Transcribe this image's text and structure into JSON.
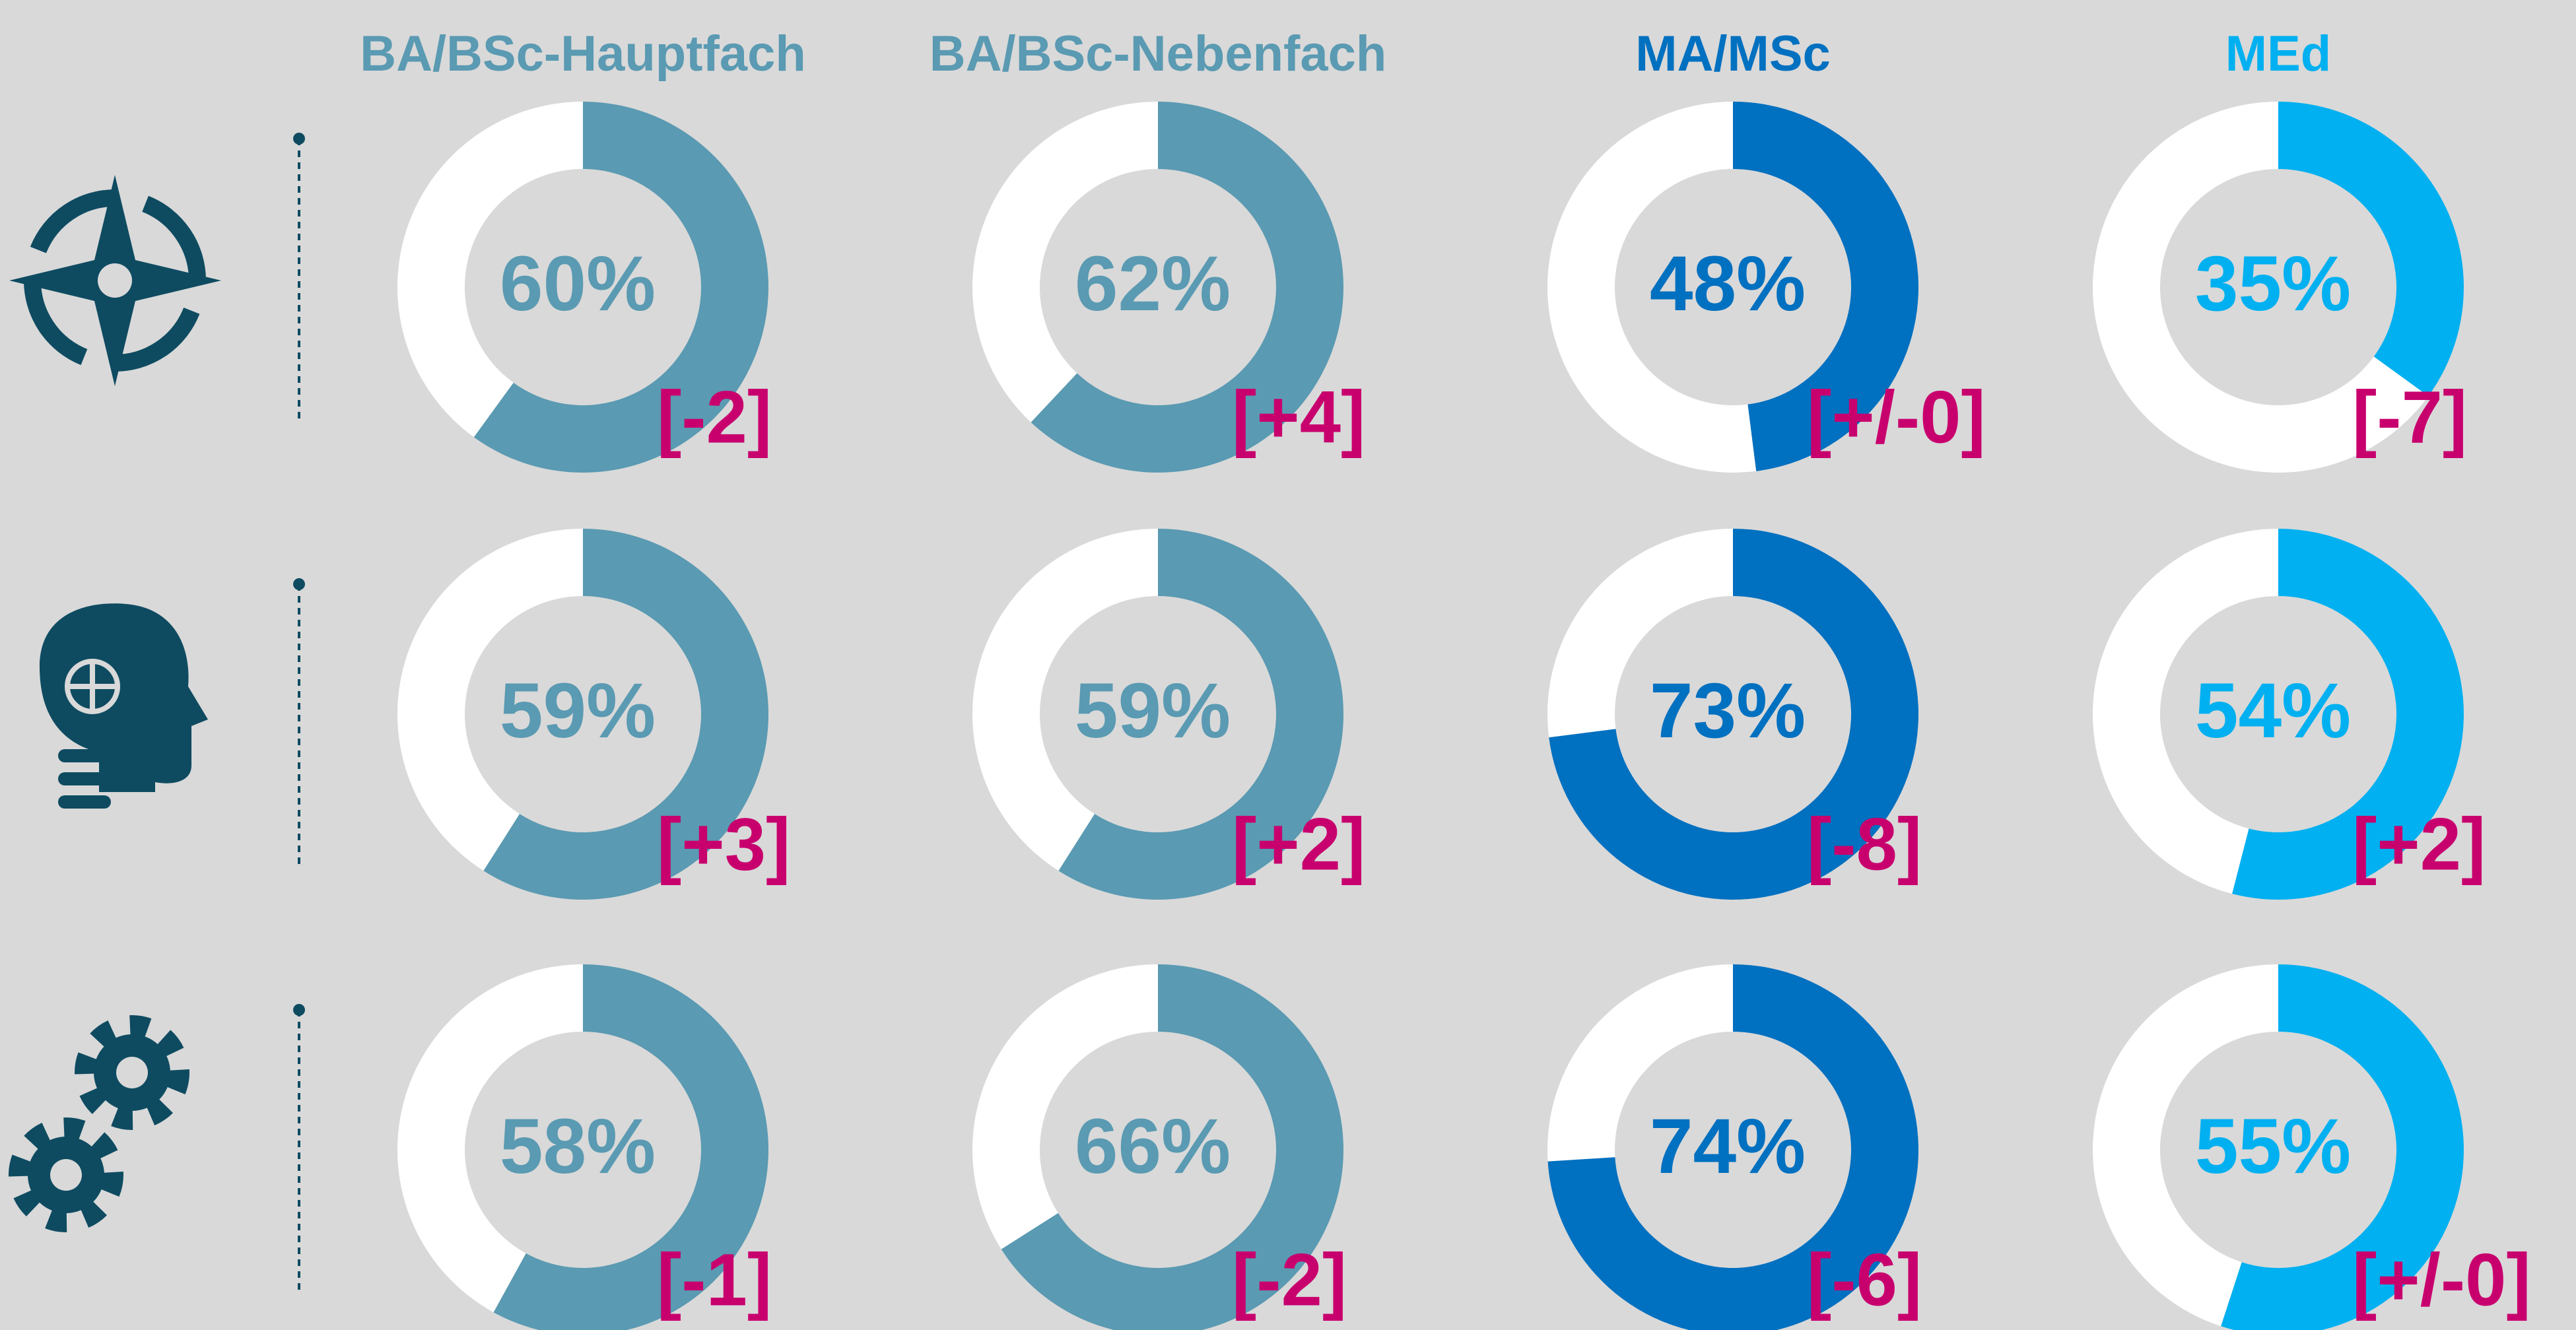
{
  "chart_data": {
    "type": "donut",
    "series": [
      {
        "name": "BA/BSc-Hauptfach",
        "color": "#5a9ab2",
        "values": [
          60,
          59,
          58
        ],
        "value_labels": [
          "60%",
          "59%",
          "58%"
        ],
        "changes": [
          "[-2]",
          "[+3]",
          "[-1]"
        ]
      },
      {
        "name": "BA/BSc-Nebenfach",
        "color": "#5a9ab2",
        "values": [
          62,
          59,
          66
        ],
        "value_labels": [
          "62%",
          "59%",
          "66%"
        ],
        "changes": [
          "[+4]",
          "[+2]",
          "[-2]"
        ]
      },
      {
        "name": "MA/MSc",
        "color": "#0070c0",
        "values": [
          48,
          73,
          74
        ],
        "value_labels": [
          "48%",
          "73%",
          "74%"
        ],
        "changes": [
          "[+/-0]",
          "[-8]",
          "[-6]"
        ]
      },
      {
        "name": "MEd",
        "color": "#00b0f0",
        "values": [
          35,
          54,
          55
        ],
        "value_labels": [
          "35%",
          "54%",
          "55%"
        ],
        "changes": [
          "[-7]",
          "[+2]",
          "[+/-0]"
        ]
      }
    ],
    "change_color": "#c8006e",
    "remainder_color": "#ffffff"
  }
}
